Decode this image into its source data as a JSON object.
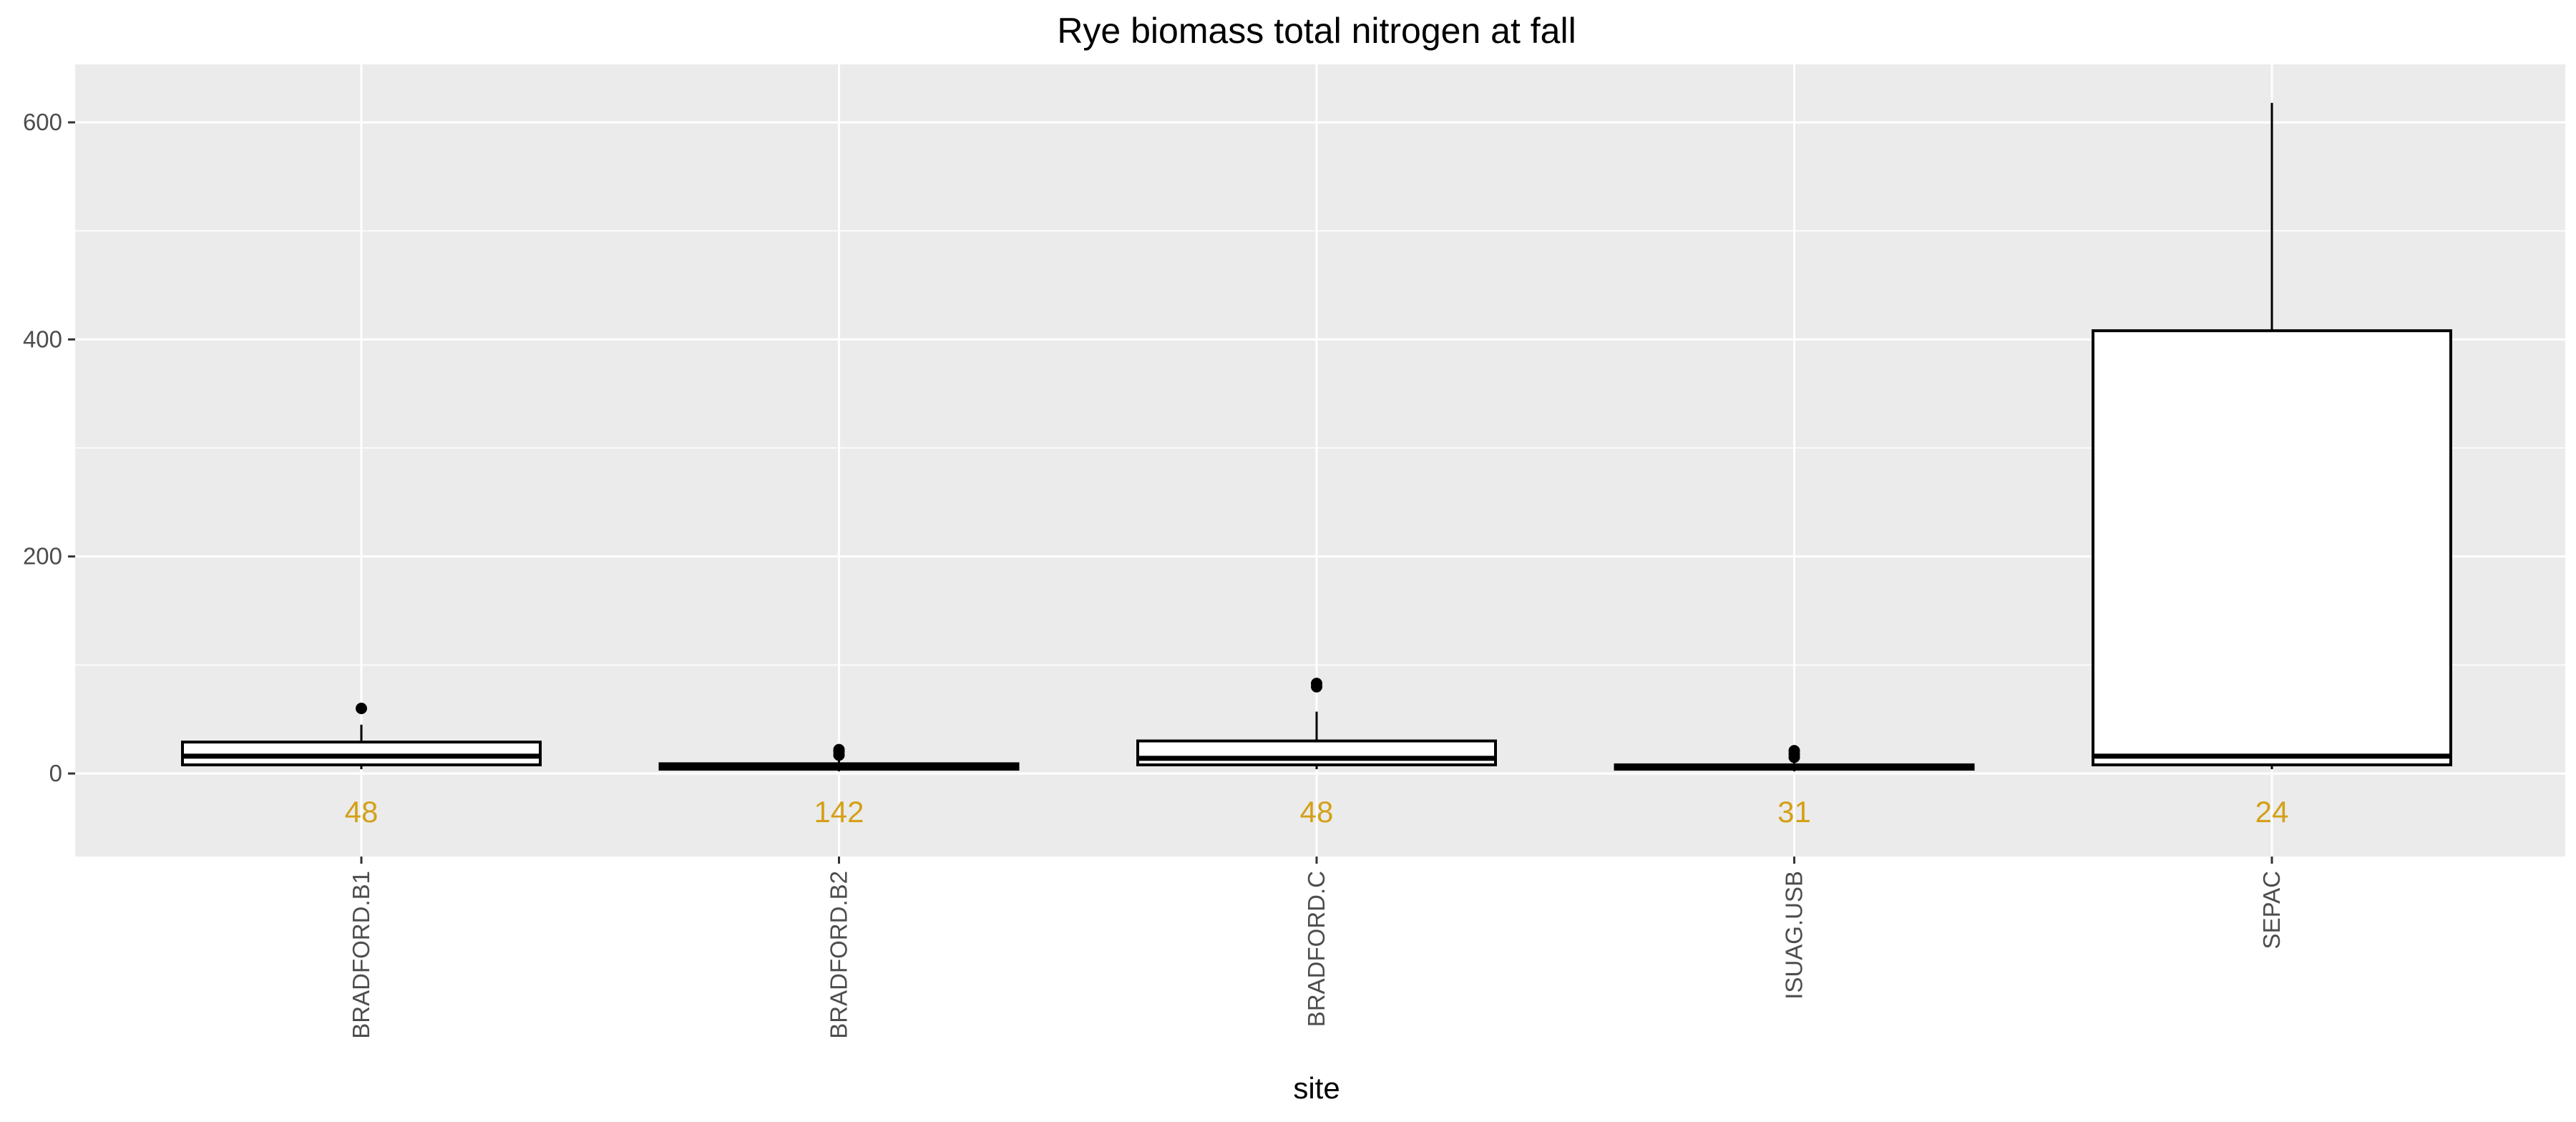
{
  "chart_data": {
    "type": "boxplot",
    "title": "Rye biomass total nitrogen at fall",
    "xlabel": "site",
    "ylabel": "",
    "ylim": [
      -75,
      650
    ],
    "y_ticks": [
      0,
      200,
      400,
      600
    ],
    "grid": true,
    "categories": [
      "BRADFORD.B1",
      "BRADFORD.B2",
      "BRADFORD.C",
      "ISUAG.USB",
      "SEPAC"
    ],
    "boxes": [
      {
        "site": "BRADFORD.B1",
        "whisker_low": 4,
        "q1": 8,
        "median": 16,
        "q3": 29,
        "whisker_high": 45,
        "outliers": [
          60
        ],
        "n": 48
      },
      {
        "site": "BRADFORD.B2",
        "whisker_low": 2,
        "q1": 4,
        "median": 6,
        "q3": 9,
        "whisker_high": 13,
        "outliers": [
          17,
          20,
          22
        ],
        "n": 142
      },
      {
        "site": "BRADFORD.C",
        "whisker_low": 4,
        "q1": 8,
        "median": 14,
        "q3": 30,
        "whisker_high": 57,
        "outliers": [
          80,
          83
        ],
        "n": 48
      },
      {
        "site": "ISUAG.USB",
        "whisker_low": 2,
        "q1": 4,
        "median": 6,
        "q3": 8,
        "whisker_high": 11,
        "outliers": [
          15,
          18,
          21
        ],
        "n": 31
      },
      {
        "site": "SEPAC",
        "whisker_low": 4,
        "q1": 8,
        "median": 16,
        "q3": 408,
        "whisker_high": 618,
        "outliers": [],
        "n": 24
      }
    ],
    "count_label_y": -35,
    "colors": {
      "panel": "#ebebeb",
      "grid": "#ffffff",
      "box_fill": "#ffffff",
      "box_stroke": "#000000",
      "count_text": "#d4a017",
      "tick_text": "#4d4d4d"
    }
  }
}
